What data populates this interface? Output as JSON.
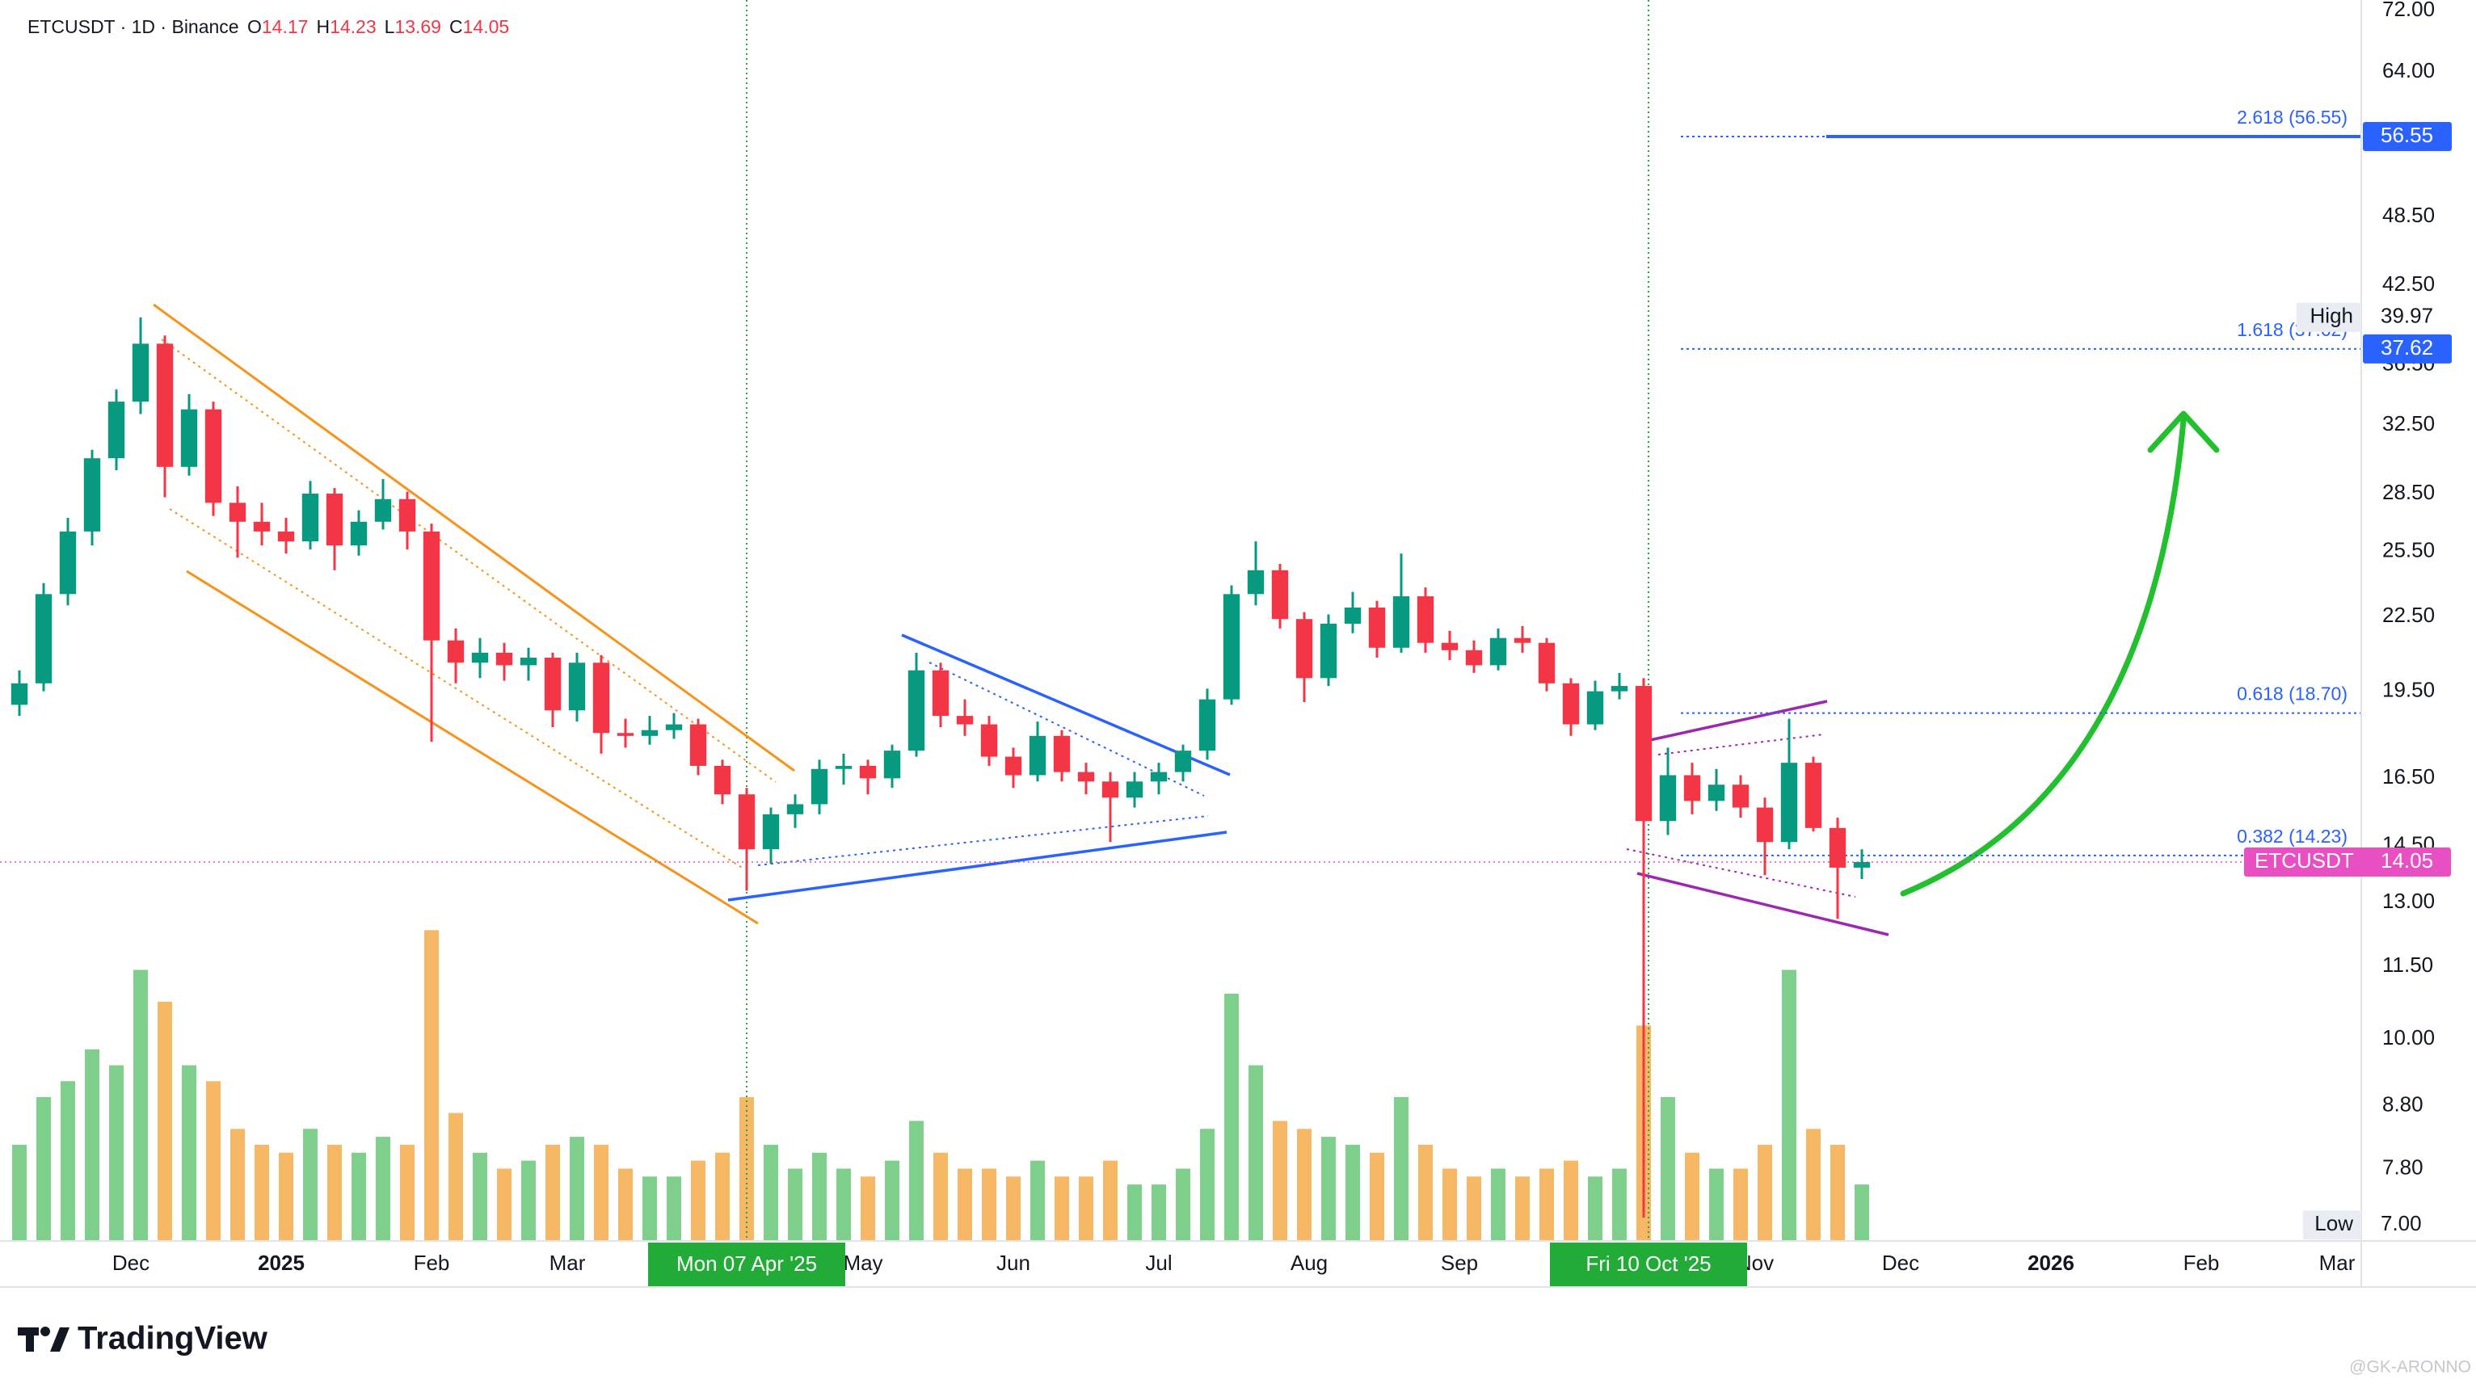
{
  "chart_data": {
    "type": "candlestick",
    "title": "ETCUSDT · 1D · Binance",
    "ohlc": [
      {
        "label": "O",
        "value": 14.17
      },
      {
        "label": "H",
        "value": 14.23
      },
      {
        "label": "L",
        "value": 13.69
      },
      {
        "label": "C",
        "value": 14.05
      }
    ],
    "log_scale": true,
    "grid": false,
    "up_color": "#089981",
    "down_color": "#f23645",
    "volume_up_color": "#7fcf8c",
    "volume_down_color": "#f6b865",
    "xlim": [
      "2024-11-04",
      "2026-03-06"
    ],
    "ylim": [
      6.8,
      73.5
    ],
    "yticks": [
      {
        "value": 7,
        "label": "7.00"
      },
      {
        "value": 7.8,
        "label": "7.80"
      },
      {
        "value": 8.8,
        "label": "8.80"
      },
      {
        "value": 10,
        "label": "10.00"
      },
      {
        "value": 11.5,
        "label": "11.50"
      },
      {
        "value": 13,
        "label": "13.00"
      },
      {
        "value": 14.5,
        "label": "14.50"
      },
      {
        "value": 16.5,
        "label": "16.50"
      },
      {
        "value": 19.5,
        "label": "19.50"
      },
      {
        "value": 22.5,
        "label": "22.50"
      },
      {
        "value": 25.5,
        "label": "25.50"
      },
      {
        "value": 28.5,
        "label": "28.50"
      },
      {
        "value": 32.5,
        "label": "32.50"
      },
      {
        "value": 36.5,
        "label": "36.50"
      },
      {
        "value": 42.5,
        "label": "42.50"
      },
      {
        "value": 48.5,
        "label": "48.50"
      },
      {
        "value": 64,
        "label": "64.00"
      },
      {
        "value": 72,
        "label": "72.00"
      }
    ],
    "xticks": [
      {
        "value": "2024-12-01",
        "label": "Dec"
      },
      {
        "value": "2025-01-01",
        "label": "2025"
      },
      {
        "value": "2025-02-01",
        "label": "Feb"
      },
      {
        "value": "2025-03-01",
        "label": "Mar"
      },
      {
        "value": "2025-05-01",
        "label": "May"
      },
      {
        "value": "2025-06-01",
        "label": "Jun"
      },
      {
        "value": "2025-07-01",
        "label": "Jul"
      },
      {
        "value": "2025-08-01",
        "label": "Aug"
      },
      {
        "value": "2025-09-01",
        "label": "Sep"
      },
      {
        "value": "2025-11-01",
        "label": "Nov"
      },
      {
        "value": "2025-12-01",
        "label": "Dec"
      },
      {
        "value": "2026-01-01",
        "label": "2026"
      },
      {
        "value": "2026-02-01",
        "label": "Feb"
      },
      {
        "value": "2026-03-01",
        "label": "Mar"
      }
    ],
    "x": [
      "2024-11-08",
      "2024-11-13",
      "2024-11-18",
      "2024-11-23",
      "2024-11-28",
      "2024-12-03",
      "2024-12-08",
      "2024-12-13",
      "2024-12-18",
      "2024-12-23",
      "2024-12-28",
      "2025-01-02",
      "2025-01-07",
      "2025-01-12",
      "2025-01-17",
      "2025-01-22",
      "2025-01-27",
      "2025-02-01",
      "2025-02-06",
      "2025-02-11",
      "2025-02-16",
      "2025-02-21",
      "2025-02-26",
      "2025-03-03",
      "2025-03-08",
      "2025-03-13",
      "2025-03-18",
      "2025-03-23",
      "2025-03-28",
      "2025-04-02",
      "2025-04-07",
      "2025-04-12",
      "2025-04-17",
      "2025-04-22",
      "2025-04-27",
      "2025-05-02",
      "2025-05-07",
      "2025-05-12",
      "2025-05-17",
      "2025-05-22",
      "2025-05-27",
      "2025-06-01",
      "2025-06-06",
      "2025-06-11",
      "2025-06-16",
      "2025-06-21",
      "2025-06-26",
      "2025-07-01",
      "2025-07-06",
      "2025-07-11",
      "2025-07-16",
      "2025-07-21",
      "2025-07-26",
      "2025-07-31",
      "2025-08-05",
      "2025-08-10",
      "2025-08-15",
      "2025-08-20",
      "2025-08-25",
      "2025-08-30",
      "2025-09-04",
      "2025-09-09",
      "2025-09-14",
      "2025-09-19",
      "2025-09-24",
      "2025-09-29",
      "2025-10-04",
      "2025-10-09",
      "2025-10-14",
      "2025-10-19",
      "2025-10-24",
      "2025-10-29",
      "2025-11-03",
      "2025-11-08",
      "2025-11-13",
      "2025-11-18",
      "2025-11-23"
    ],
    "open": [
      19.0,
      19.8,
      23.5,
      26.5,
      30.5,
      34.0,
      38.0,
      30.0,
      33.5,
      28.0,
      27.0,
      26.5,
      26.0,
      28.5,
      25.8,
      27.0,
      28.2,
      26.5,
      21.5,
      20.6,
      21.0,
      20.5,
      20.8,
      18.8,
      20.6,
      18.0,
      17.9,
      18.1,
      18.3,
      16.9,
      16.0,
      14.4,
      15.4,
      15.7,
      16.8,
      16.9,
      16.5,
      17.4,
      20.3,
      18.6,
      18.3,
      17.2,
      16.6,
      17.9,
      16.7,
      16.4,
      15.9,
      16.4,
      16.7,
      17.4,
      19.2,
      23.5,
      24.6,
      22.4,
      20.0,
      22.2,
      22.9,
      21.2,
      23.4,
      21.4,
      21.1,
      20.5,
      21.6,
      21.4,
      19.8,
      18.3,
      19.5,
      19.7,
      15.2,
      16.6,
      15.8,
      16.3,
      15.6,
      14.6,
      17.0,
      15.0,
      13.9
    ],
    "high": [
      20.3,
      24.0,
      27.2,
      31.0,
      34.8,
      39.97,
      38.6,
      34.5,
      34.0,
      28.9,
      28.0,
      27.2,
      29.2,
      28.8,
      27.6,
      29.3,
      28.6,
      26.9,
      22.0,
      21.6,
      21.4,
      21.2,
      21.0,
      21.0,
      20.9,
      18.5,
      18.6,
      18.7,
      18.5,
      17.1,
      16.2,
      15.6,
      16.0,
      17.1,
      17.3,
      17.1,
      17.6,
      21.0,
      20.6,
      19.2,
      18.6,
      17.5,
      18.4,
      18.1,
      17.0,
      16.7,
      16.7,
      17.0,
      17.6,
      19.6,
      23.9,
      26.0,
      24.9,
      22.7,
      22.6,
      23.6,
      23.2,
      25.4,
      23.8,
      21.9,
      21.5,
      22.0,
      22.1,
      21.6,
      20.0,
      19.9,
      20.2,
      20.0,
      17.5,
      17.0,
      16.8,
      16.6,
      15.9,
      18.5,
      17.2,
      15.3,
      14.4
    ],
    "low": [
      18.6,
      19.5,
      23.0,
      25.8,
      29.8,
      33.2,
      28.3,
      29.5,
      27.3,
      25.2,
      25.8,
      25.4,
      25.6,
      24.6,
      25.3,
      26.6,
      25.6,
      17.7,
      19.8,
      20.0,
      19.9,
      19.9,
      18.2,
      18.4,
      17.3,
      17.5,
      17.6,
      17.8,
      16.6,
      15.7,
      13.3,
      14.0,
      15.0,
      15.4,
      16.3,
      16.0,
      16.2,
      17.2,
      18.2,
      17.9,
      16.9,
      16.2,
      16.4,
      16.4,
      16.0,
      14.6,
      15.6,
      16.0,
      16.4,
      17.1,
      19.0,
      23.0,
      22.0,
      19.1,
      19.7,
      21.8,
      20.8,
      21.0,
      21.0,
      20.7,
      20.2,
      20.3,
      21.0,
      19.5,
      17.9,
      18.1,
      19.2,
      7.1,
      14.8,
      15.4,
      15.5,
      15.3,
      13.7,
      14.4,
      14.9,
      12.6,
      13.6
    ],
    "close": [
      19.8,
      23.5,
      26.5,
      30.5,
      34.0,
      38.0,
      30.0,
      33.5,
      28.0,
      27.0,
      26.5,
      26.0,
      28.5,
      25.8,
      27.0,
      28.2,
      26.5,
      21.5,
      20.6,
      21.0,
      20.5,
      20.8,
      18.8,
      20.6,
      18.0,
      17.9,
      18.1,
      18.3,
      16.9,
      16.0,
      14.4,
      15.4,
      15.7,
      16.8,
      16.9,
      16.5,
      17.4,
      20.3,
      18.6,
      18.3,
      17.2,
      16.6,
      17.9,
      16.7,
      16.4,
      15.9,
      16.4,
      16.7,
      17.4,
      19.2,
      23.5,
      24.6,
      22.4,
      20.0,
      22.2,
      22.9,
      21.2,
      23.4,
      21.4,
      21.1,
      20.5,
      21.6,
      21.4,
      19.8,
      18.3,
      19.5,
      19.7,
      15.2,
      16.6,
      15.8,
      16.3,
      15.6,
      14.6,
      17.0,
      15.0,
      13.9,
      14.05
    ],
    "volume": [
      60,
      90,
      100,
      120,
      110,
      170,
      150,
      110,
      100,
      70,
      60,
      55,
      70,
      60,
      55,
      65,
      60,
      195,
      80,
      55,
      45,
      50,
      60,
      65,
      60,
      45,
      40,
      40,
      50,
      55,
      90,
      60,
      45,
      55,
      45,
      40,
      50,
      75,
      55,
      45,
      45,
      40,
      50,
      40,
      40,
      50,
      35,
      35,
      45,
      70,
      155,
      110,
      75,
      70,
      65,
      60,
      55,
      90,
      60,
      45,
      40,
      45,
      40,
      45,
      50,
      40,
      45,
      135,
      90,
      55,
      45,
      45,
      60,
      170,
      70,
      60,
      35
    ],
    "fib_levels": [
      {
        "label": "2.618 (56.55)",
        "value": 56.55
      },
      {
        "label": "1.618 (37.62)",
        "value": 37.62
      },
      {
        "label": "0.618 (18.70)",
        "value": 18.7
      },
      {
        "label": "0.382 (14.23)",
        "value": 14.23
      }
    ],
    "high_label": {
      "label": "High",
      "value": 39.97
    },
    "low_label": {
      "label": "Low",
      "value": 7,
      "value_label": "7.00"
    },
    "last": {
      "label": "ETCUSDT",
      "value": 14.05
    },
    "markers": [
      {
        "x": "2025-04-07",
        "label": "Mon 07 Apr '25"
      },
      {
        "x": "2025-10-10",
        "label": "Fri 10 Oct '25"
      }
    ],
    "brand": "TradingView",
    "watermark": "@GK-ARONNO"
  }
}
